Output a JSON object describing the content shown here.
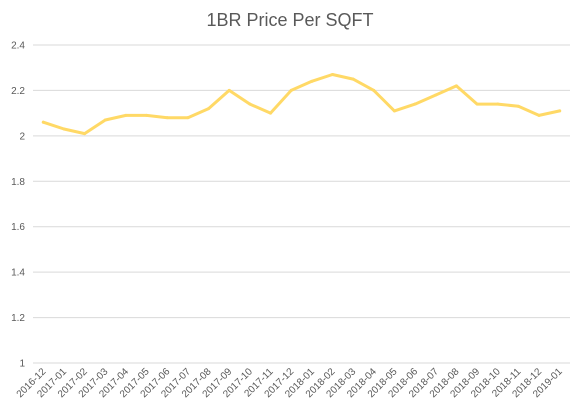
{
  "chart_data": {
    "type": "line",
    "title": "1BR Price Per SQFT",
    "xlabel": "",
    "ylabel": "",
    "ylim": [
      1,
      2.4
    ],
    "yticks": [
      "1",
      "1.2",
      "1.4",
      "1.6",
      "1.8",
      "2",
      "2.2",
      "2.4"
    ],
    "grid": true,
    "legend": "none",
    "categories": [
      "2016-12",
      "2017-01",
      "2017-02",
      "2017-03",
      "2017-04",
      "2017-05",
      "2017-06",
      "2017-07",
      "2017-08",
      "2017-09",
      "2017-10",
      "2017-11",
      "2017-12",
      "2018-01",
      "2018-02",
      "2018-03",
      "2018-04",
      "2018-05",
      "2018-06",
      "2018-07",
      "2018-08",
      "2018-09",
      "2018-10",
      "2018-11",
      "2018-12",
      "2019-01"
    ],
    "series": [
      {
        "color": "#ffd966",
        "values": [
          2.06,
          2.03,
          2.01,
          2.07,
          2.09,
          2.09,
          2.08,
          2.08,
          2.12,
          2.2,
          2.14,
          2.1,
          2.2,
          2.24,
          2.27,
          2.25,
          2.2,
          2.11,
          2.14,
          2.18,
          2.22,
          2.14,
          2.14,
          2.13,
          2.09,
          2.11
        ]
      }
    ]
  }
}
